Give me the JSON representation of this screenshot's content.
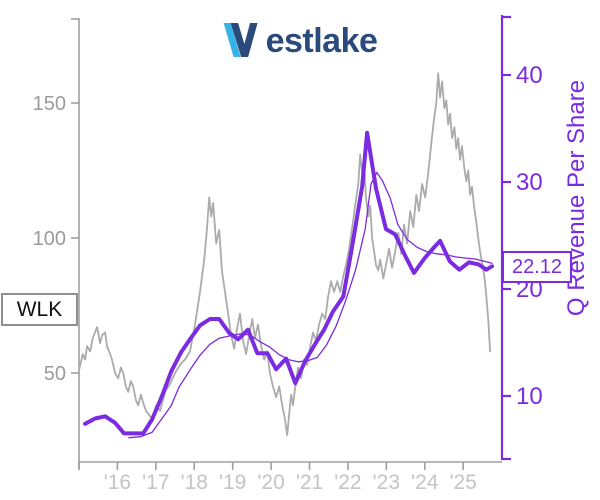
{
  "logo": {
    "first_letter": "W",
    "rest": "estlake",
    "full_text": "Westlake"
  },
  "annotations": {
    "ticker_label": "WLK",
    "last_value_label": "22.12"
  },
  "colors": {
    "background": "#ffffff",
    "price_line": "#ababab",
    "axis_gray": "#9f9f9f",
    "left_tick_label_gray": "#9b9b9b",
    "x_tick_label_gray": "#c4c4c4",
    "accent_purple": "#7b2be0",
    "logo_navy": "#2b4a7c",
    "logo_cyan": "#35b3e6",
    "ticker_box_border": "#8f8f8f"
  },
  "chart_data": {
    "type": "line",
    "title": "",
    "x_axis": {
      "tick_labels": [
        "'16",
        "'17",
        "'18",
        "'19",
        "'20",
        "'21",
        "'22",
        "'23",
        "'24",
        "'25"
      ],
      "tick_years": [
        2016,
        2017,
        2018,
        2019,
        2020,
        2021,
        2022,
        2023,
        2024,
        2025
      ],
      "unlabeled_tick_years": [
        2015
      ],
      "range": [
        2015.0,
        2026.01
      ],
      "grid": false
    },
    "left_axis": {
      "label": "",
      "ticks": [
        50,
        100,
        150
      ],
      "range": [
        17.1,
        181.5
      ]
    },
    "right_axis": {
      "label": "Q Revenue Per Share",
      "ticks": [
        10,
        20,
        30,
        40
      ],
      "range": [
        3.9,
        45.3
      ]
    },
    "legend": "none",
    "series": [
      {
        "name": "WLK stock price",
        "axis": "left",
        "color": "#ababab",
        "width": 1.8,
        "points": [
          [
            2015.0,
            51
          ],
          [
            2015.1,
            57
          ],
          [
            2015.16,
            55
          ],
          [
            2015.21,
            60
          ],
          [
            2015.29,
            58
          ],
          [
            2015.36,
            63
          ],
          [
            2015.47,
            67
          ],
          [
            2015.55,
            61
          ],
          [
            2015.6,
            64
          ],
          [
            2015.68,
            65
          ],
          [
            2015.73,
            60
          ],
          [
            2015.81,
            57
          ],
          [
            2015.86,
            55
          ],
          [
            2015.94,
            50
          ],
          [
            2016.02,
            48
          ],
          [
            2016.09,
            52
          ],
          [
            2016.15,
            50
          ],
          [
            2016.22,
            45
          ],
          [
            2016.28,
            43
          ],
          [
            2016.35,
            47
          ],
          [
            2016.41,
            45
          ],
          [
            2016.48,
            40
          ],
          [
            2016.54,
            38
          ],
          [
            2016.61,
            42
          ],
          [
            2016.67,
            39
          ],
          [
            2016.74,
            36
          ],
          [
            2016.8,
            35
          ],
          [
            2016.9,
            33
          ],
          [
            2017.01,
            38
          ],
          [
            2017.11,
            36
          ],
          [
            2017.24,
            43
          ],
          [
            2017.37,
            46
          ],
          [
            2017.5,
            50
          ],
          [
            2017.63,
            53
          ],
          [
            2017.76,
            55
          ],
          [
            2017.89,
            58
          ],
          [
            2018.02,
            68
          ],
          [
            2018.15,
            80
          ],
          [
            2018.26,
            92
          ],
          [
            2018.33,
            103
          ],
          [
            2018.39,
            115
          ],
          [
            2018.44,
            108
          ],
          [
            2018.49,
            113
          ],
          [
            2018.57,
            98
          ],
          [
            2018.65,
            103
          ],
          [
            2018.72,
            88
          ],
          [
            2018.8,
            80
          ],
          [
            2018.88,
            72
          ],
          [
            2018.96,
            64
          ],
          [
            2019.04,
            59
          ],
          [
            2019.11,
            66
          ],
          [
            2019.19,
            72
          ],
          [
            2019.27,
            62
          ],
          [
            2019.35,
            57
          ],
          [
            2019.43,
            64
          ],
          [
            2019.51,
            70
          ],
          [
            2019.58,
            63
          ],
          [
            2019.66,
            68
          ],
          [
            2019.74,
            60
          ],
          [
            2019.82,
            55
          ],
          [
            2019.9,
            58
          ],
          [
            2019.97,
            50
          ],
          [
            2020.05,
            45
          ],
          [
            2020.13,
            41
          ],
          [
            2020.21,
            45
          ],
          [
            2020.29,
            38
          ],
          [
            2020.36,
            33
          ],
          [
            2020.42,
            27
          ],
          [
            2020.47,
            35
          ],
          [
            2020.52,
            42
          ],
          [
            2020.57,
            38
          ],
          [
            2020.63,
            45
          ],
          [
            2020.7,
            52
          ],
          [
            2020.78,
            48
          ],
          [
            2020.86,
            55
          ],
          [
            2020.94,
            53
          ],
          [
            2021.02,
            60
          ],
          [
            2021.09,
            65
          ],
          [
            2021.17,
            62
          ],
          [
            2021.25,
            68
          ],
          [
            2021.33,
            72
          ],
          [
            2021.41,
            70
          ],
          [
            2021.48,
            78
          ],
          [
            2021.56,
            84
          ],
          [
            2021.64,
            80
          ],
          [
            2021.72,
            84
          ],
          [
            2021.8,
            80
          ],
          [
            2021.88,
            86
          ],
          [
            2021.95,
            90
          ],
          [
            2022.03,
            96
          ],
          [
            2022.11,
            104
          ],
          [
            2022.19,
            112
          ],
          [
            2022.27,
            120
          ],
          [
            2022.32,
            131
          ],
          [
            2022.37,
            124
          ],
          [
            2022.42,
            128
          ],
          [
            2022.47,
            115
          ],
          [
            2022.53,
            108
          ],
          [
            2022.58,
            112
          ],
          [
            2022.63,
            100
          ],
          [
            2022.68,
            95
          ],
          [
            2022.73,
            90
          ],
          [
            2022.79,
            88
          ],
          [
            2022.84,
            92
          ],
          [
            2022.92,
            85
          ],
          [
            2022.99,
            90
          ],
          [
            2023.07,
            96
          ],
          [
            2023.15,
            89
          ],
          [
            2023.23,
            95
          ],
          [
            2023.31,
            102
          ],
          [
            2023.39,
            94
          ],
          [
            2023.46,
            105
          ],
          [
            2023.54,
            98
          ],
          [
            2023.62,
            110
          ],
          [
            2023.7,
            104
          ],
          [
            2023.78,
            116
          ],
          [
            2023.85,
            110
          ],
          [
            2023.93,
            120
          ],
          [
            2024.01,
            115
          ],
          [
            2024.09,
            124
          ],
          [
            2024.17,
            135
          ],
          [
            2024.24,
            144
          ],
          [
            2024.3,
            150
          ],
          [
            2024.35,
            161
          ],
          [
            2024.4,
            152
          ],
          [
            2024.45,
            158
          ],
          [
            2024.51,
            148
          ],
          [
            2024.56,
            151
          ],
          [
            2024.61,
            142
          ],
          [
            2024.66,
            146
          ],
          [
            2024.71,
            137
          ],
          [
            2024.77,
            141
          ],
          [
            2024.82,
            133
          ],
          [
            2024.87,
            137
          ],
          [
            2024.92,
            129
          ],
          [
            2024.97,
            134
          ],
          [
            2025.03,
            126
          ],
          [
            2025.08,
            121
          ],
          [
            2025.13,
            125
          ],
          [
            2025.18,
            116
          ],
          [
            2025.23,
            119
          ],
          [
            2025.29,
            111
          ],
          [
            2025.34,
            106
          ],
          [
            2025.39,
            100
          ],
          [
            2025.44,
            95
          ],
          [
            2025.49,
            91
          ],
          [
            2025.55,
            86
          ],
          [
            2025.6,
            79
          ],
          [
            2025.65,
            70
          ],
          [
            2025.7,
            58
          ]
        ]
      },
      {
        "name": "Q revenue per share",
        "axis": "right",
        "color": "#7b2be0",
        "width": 4,
        "points": [
          [
            2015.16,
            7.4
          ],
          [
            2015.42,
            7.9
          ],
          [
            2015.68,
            8.1
          ],
          [
            2015.94,
            7.5
          ],
          [
            2016.17,
            6.5
          ],
          [
            2016.41,
            6.5
          ],
          [
            2016.67,
            6.5
          ],
          [
            2016.9,
            7.8
          ],
          [
            2017.16,
            10.0
          ],
          [
            2017.4,
            12.3
          ],
          [
            2017.66,
            14.1
          ],
          [
            2017.89,
            15.3
          ],
          [
            2018.15,
            16.6
          ],
          [
            2018.41,
            17.2
          ],
          [
            2018.65,
            17.2
          ],
          [
            2018.91,
            15.9
          ],
          [
            2019.14,
            15.3
          ],
          [
            2019.4,
            16.2
          ],
          [
            2019.64,
            14.0
          ],
          [
            2019.9,
            14.0
          ],
          [
            2020.13,
            12.5
          ],
          [
            2020.39,
            13.5
          ],
          [
            2020.63,
            11.2
          ],
          [
            2020.89,
            13.3
          ],
          [
            2021.12,
            14.7
          ],
          [
            2021.38,
            16.2
          ],
          [
            2021.61,
            17.9
          ],
          [
            2021.88,
            19.3
          ],
          [
            2022.11,
            24.0
          ],
          [
            2022.37,
            29.6
          ],
          [
            2022.5,
            34.6
          ],
          [
            2022.73,
            29.4
          ],
          [
            2022.99,
            25.6
          ],
          [
            2023.23,
            25.1
          ],
          [
            2023.49,
            23.1
          ],
          [
            2023.72,
            21.5
          ],
          [
            2023.98,
            22.8
          ],
          [
            2024.22,
            23.8
          ],
          [
            2024.4,
            24.5
          ],
          [
            2024.65,
            22.6
          ],
          [
            2024.9,
            21.8
          ],
          [
            2025.15,
            22.5
          ],
          [
            2025.4,
            22.3
          ],
          [
            2025.6,
            21.8
          ],
          [
            2025.75,
            22.12
          ]
        ]
      },
      {
        "name": "Q revenue per share smoothed",
        "axis": "right",
        "color": "#7b2be0",
        "width": 1.3,
        "points": [
          [
            2016.3,
            6.1
          ],
          [
            2016.6,
            6.2
          ],
          [
            2016.9,
            6.6
          ],
          [
            2017.1,
            7.6
          ],
          [
            2017.4,
            9.1
          ],
          [
            2017.6,
            10.8
          ],
          [
            2017.9,
            12.5
          ],
          [
            2018.15,
            13.8
          ],
          [
            2018.4,
            14.8
          ],
          [
            2018.65,
            15.4
          ],
          [
            2018.9,
            15.6
          ],
          [
            2019.2,
            15.8
          ],
          [
            2019.45,
            15.7
          ],
          [
            2019.7,
            15.1
          ],
          [
            2019.95,
            14.6
          ],
          [
            2020.2,
            13.9
          ],
          [
            2020.45,
            13.4
          ],
          [
            2020.7,
            13.2
          ],
          [
            2020.95,
            13.3
          ],
          [
            2021.2,
            13.6
          ],
          [
            2021.45,
            14.8
          ],
          [
            2021.7,
            16.6
          ],
          [
            2021.95,
            19.0
          ],
          [
            2022.2,
            21.8
          ],
          [
            2022.45,
            25.6
          ],
          [
            2022.6,
            29.8
          ],
          [
            2022.75,
            30.9
          ],
          [
            2022.9,
            30.1
          ],
          [
            2023.1,
            28.5
          ],
          [
            2023.3,
            26.0
          ],
          [
            2023.55,
            24.6
          ],
          [
            2023.8,
            23.9
          ],
          [
            2024.05,
            23.5
          ],
          [
            2024.3,
            23.3
          ],
          [
            2024.55,
            23.2
          ],
          [
            2024.8,
            23.0
          ],
          [
            2025.05,
            22.9
          ],
          [
            2025.3,
            22.8
          ],
          [
            2025.55,
            22.6
          ],
          [
            2025.75,
            22.4
          ]
        ]
      }
    ]
  }
}
